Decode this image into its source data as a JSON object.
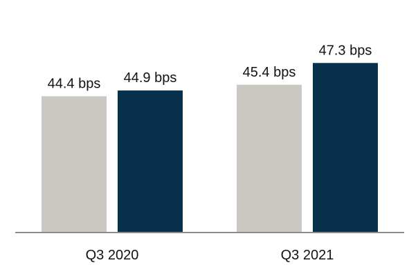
{
  "chart_data": {
    "type": "bar",
    "title": "",
    "xlabel": "",
    "ylabel": "",
    "categories": [
      "Q3 2020",
      "Q3 2021"
    ],
    "series": [
      {
        "color": "#cbc8c3",
        "values": [
          44.4,
          45.4
        ],
        "labels": [
          "44.4 bps",
          "45.4 bps"
        ]
      },
      {
        "color": "#07304a",
        "values": [
          44.9,
          47.3
        ],
        "labels": [
          "44.9 bps",
          "47.3 bps"
        ]
      }
    ],
    "ylim": [
      32.5,
      48.1
    ],
    "grid": false,
    "legend": "none",
    "axis_color": "#8c8c8c"
  }
}
